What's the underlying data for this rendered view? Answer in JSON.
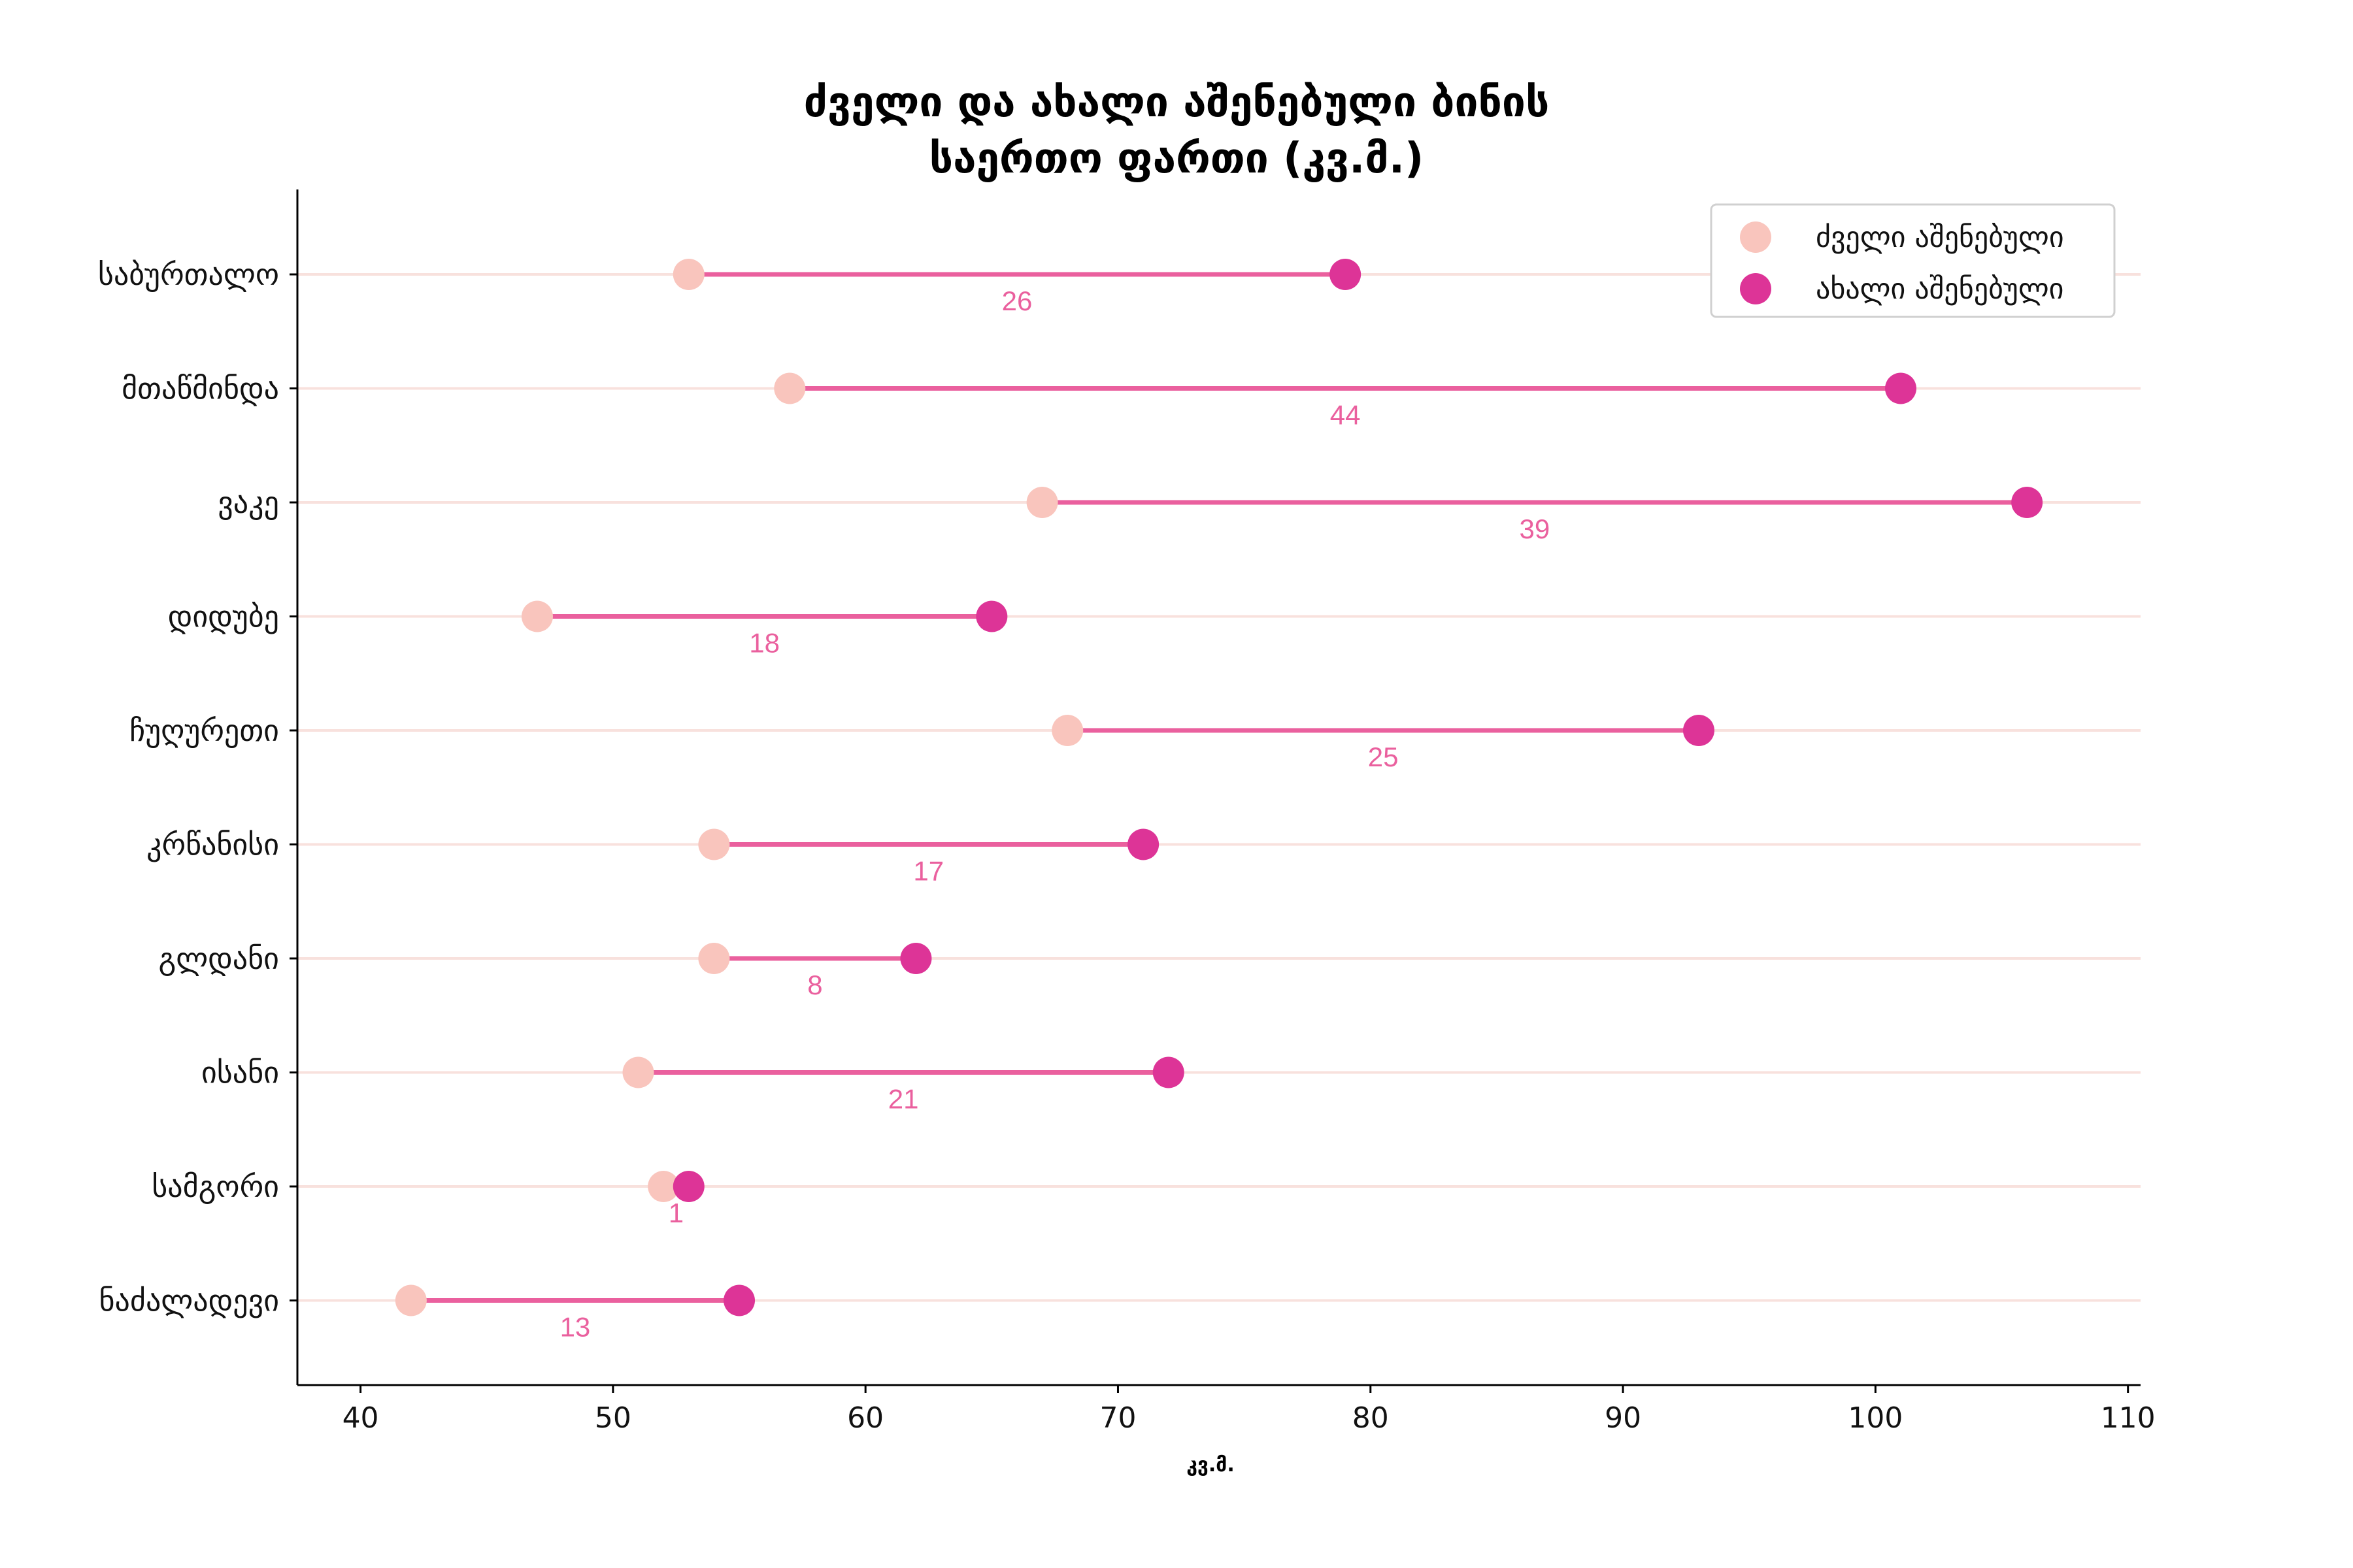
{
  "chart_data": {
    "type": "dumbbell",
    "title": [
      "ძველი და ახალი აშენებული ბინის",
      "საერთო ფართი (კვ.მ.)"
    ],
    "xlabel": "კვ.მ.",
    "ylabel": "",
    "xlim": [
      37.5,
      110.5
    ],
    "xticks": [
      40,
      50,
      60,
      70,
      80,
      90,
      100,
      110
    ],
    "categories": [
      "საბურთალო",
      "მთაწმინდა",
      "ვაკე",
      "დიდუბე",
      "ჩუღურეთი",
      "კრწანისი",
      "გლდანი",
      "ისანი",
      "სამგორი",
      "ნაძალადევი"
    ],
    "series": [
      {
        "name": "ძველი აშენებული",
        "values": [
          53,
          57,
          67,
          47,
          68,
          54,
          54,
          51,
          52,
          42
        ],
        "color": "#f9c5bd"
      },
      {
        "name": "ახალი აშენებული",
        "values": [
          79,
          101,
          106,
          65,
          93,
          71,
          62,
          72,
          53,
          55
        ],
        "color": "#dd3497"
      }
    ],
    "differences": [
      "26",
      "44",
      "39",
      "18",
      "25",
      "17",
      "8",
      "21",
      "1",
      "13"
    ],
    "line_color": "#ea609e",
    "grid_color": "#f8e1dd",
    "legend_position": "top-right",
    "grid": "horizontal"
  }
}
